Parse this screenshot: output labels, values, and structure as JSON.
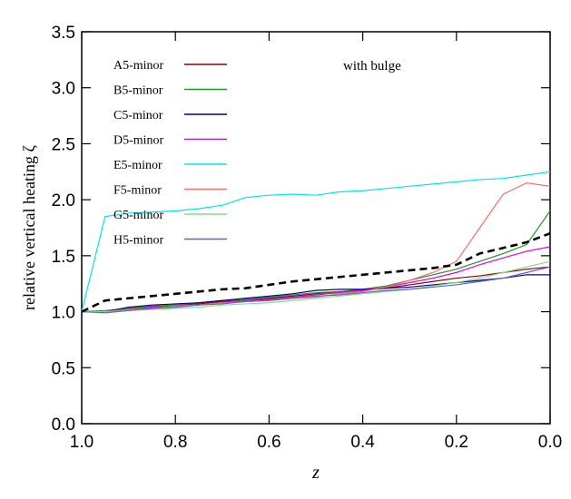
{
  "chart_data": {
    "type": "line",
    "annotation": "with bulge",
    "xlabel": "z",
    "ylabel": "relative vertical heating ζ",
    "xlim": [
      1.0,
      0.0
    ],
    "ylim": [
      0.0,
      3.5
    ],
    "xticks": [
      {
        "value": 1,
        "label": "1.0"
      },
      0.8,
      0.6,
      0.4,
      0.2,
      {
        "value": 0,
        "label": "0.0"
      }
    ],
    "yticks": [
      {
        "value": 0,
        "label": "0.0"
      },
      0.5,
      {
        "value": 1,
        "label": "1.0"
      },
      1.5,
      {
        "value": 2,
        "label": "2.0"
      },
      2.5,
      {
        "value": 3,
        "label": "3.0"
      },
      3.5
    ],
    "x": [
      1.0,
      0.95,
      0.9,
      0.85,
      0.8,
      0.75,
      0.7,
      0.65,
      0.6,
      0.55,
      0.5,
      0.45,
      0.4,
      0.35,
      0.3,
      0.25,
      0.2,
      0.15,
      0.1,
      0.05,
      0.0
    ],
    "series": [
      {
        "name": "A5-minor",
        "color": "#8b0000",
        "values": [
          1.0,
          1.0,
          1.03,
          1.04,
          1.06,
          1.07,
          1.09,
          1.1,
          1.12,
          1.14,
          1.16,
          1.18,
          1.19,
          1.21,
          1.24,
          1.27,
          1.3,
          1.32,
          1.35,
          1.38,
          1.4
        ]
      },
      {
        "name": "B5-minor",
        "color": "#1a9a1a",
        "values": [
          1.0,
          1.01,
          1.03,
          1.05,
          1.06,
          1.08,
          1.1,
          1.11,
          1.13,
          1.15,
          1.17,
          1.18,
          1.2,
          1.23,
          1.28,
          1.33,
          1.38,
          1.45,
          1.52,
          1.6,
          1.9
        ]
      },
      {
        "name": "C5-minor",
        "color": "#00008b",
        "values": [
          1.0,
          1.0,
          1.04,
          1.06,
          1.07,
          1.08,
          1.1,
          1.12,
          1.14,
          1.16,
          1.19,
          1.2,
          1.2,
          1.21,
          1.22,
          1.24,
          1.26,
          1.28,
          1.3,
          1.33,
          1.33
        ]
      },
      {
        "name": "D5-minor",
        "color": "#e000e0",
        "values": [
          1.0,
          1.0,
          1.02,
          1.04,
          1.05,
          1.06,
          1.08,
          1.1,
          1.11,
          1.13,
          1.15,
          1.17,
          1.19,
          1.22,
          1.26,
          1.3,
          1.35,
          1.42,
          1.48,
          1.54,
          1.58
        ]
      },
      {
        "name": "E5-minor",
        "color": "#00e5e5",
        "values": [
          1.0,
          1.85,
          1.88,
          1.89,
          1.9,
          1.92,
          1.95,
          2.02,
          2.04,
          2.05,
          2.04,
          2.07,
          2.08,
          2.1,
          2.12,
          2.14,
          2.16,
          2.18,
          2.19,
          2.22,
          2.25
        ]
      },
      {
        "name": "F5-minor",
        "color": "#f07070",
        "values": [
          1.0,
          1.0,
          1.02,
          1.03,
          1.05,
          1.06,
          1.08,
          1.09,
          1.1,
          1.12,
          1.13,
          1.16,
          1.18,
          1.22,
          1.28,
          1.35,
          1.45,
          1.75,
          2.05,
          2.15,
          2.12
        ]
      },
      {
        "name": "G5-minor",
        "color": "#80e080",
        "values": [
          1.0,
          1.0,
          1.01,
          1.02,
          1.03,
          1.04,
          1.06,
          1.07,
          1.08,
          1.1,
          1.12,
          1.14,
          1.16,
          1.18,
          1.2,
          1.23,
          1.26,
          1.3,
          1.35,
          1.4,
          1.45
        ]
      },
      {
        "name": "H5-minor",
        "color": "#6060d0",
        "values": [
          1.0,
          0.99,
          1.01,
          1.03,
          1.04,
          1.06,
          1.07,
          1.09,
          1.1,
          1.12,
          1.14,
          1.15,
          1.17,
          1.19,
          1.2,
          1.22,
          1.24,
          1.27,
          1.3,
          1.35,
          1.4
        ]
      },
      {
        "color": "#000000",
        "dash": true,
        "values": [
          1.0,
          1.1,
          1.12,
          1.14,
          1.16,
          1.18,
          1.2,
          1.21,
          1.24,
          1.27,
          1.29,
          1.31,
          1.33,
          1.35,
          1.37,
          1.39,
          1.42,
          1.52,
          1.57,
          1.62,
          1.7
        ]
      }
    ]
  }
}
